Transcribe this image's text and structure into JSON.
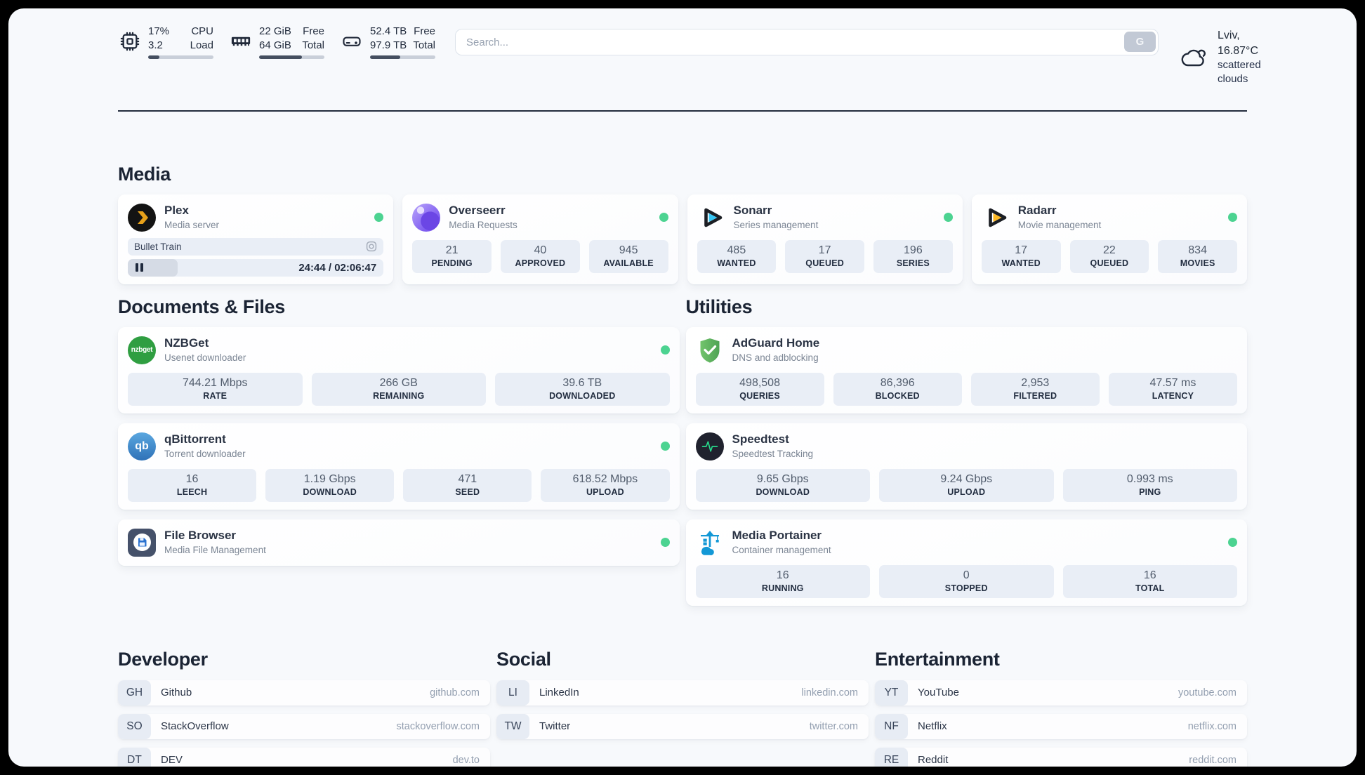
{
  "theme": {
    "status_online": "#4cd391",
    "accent_dark": "#232c3d",
    "stat_block_bg": "#e9eef6"
  },
  "header": {
    "resources": [
      {
        "name": "cpu",
        "icon": "cpu-icon",
        "value_top": "17%",
        "value_bottom": "3.2",
        "label_top": "CPU",
        "label_bottom": "Load",
        "progress_percent": 17
      },
      {
        "name": "memory",
        "icon": "memory-icon",
        "value_top": "22 GiB",
        "value_bottom": "64 GiB",
        "label_top": "Free",
        "label_bottom": "Total",
        "progress_percent": 66
      },
      {
        "name": "disk",
        "icon": "disk-icon",
        "value_top": "52.4 TB",
        "value_bottom": "97.9 TB",
        "label_top": "Free",
        "label_bottom": "Total",
        "progress_percent": 46
      }
    ],
    "search": {
      "placeholder": "Search...",
      "provider_button": "G"
    },
    "weather": {
      "icon": "scattered-clouds-icon",
      "line1": "Lviv, 16.87°C",
      "line2": "scattered clouds"
    }
  },
  "media": {
    "title": "Media",
    "plex": {
      "name": "Plex",
      "subtitle": "Media server",
      "status": "online",
      "now_playing": "Bullet Train",
      "elapsed_total": "24:44 / 02:06:47",
      "progress_percent": 19.5
    },
    "overseerr": {
      "name": "Overseerr",
      "subtitle": "Media Requests",
      "status": "online",
      "stats": [
        {
          "value": "21",
          "label": "PENDING"
        },
        {
          "value": "40",
          "label": "APPROVED"
        },
        {
          "value": "945",
          "label": "AVAILABLE"
        }
      ]
    },
    "sonarr": {
      "name": "Sonarr",
      "subtitle": "Series management",
      "status": "online",
      "stats": [
        {
          "value": "485",
          "label": "WANTED"
        },
        {
          "value": "17",
          "label": "QUEUED"
        },
        {
          "value": "196",
          "label": "SERIES"
        }
      ]
    },
    "radarr": {
      "name": "Radarr",
      "subtitle": "Movie management",
      "status": "online",
      "stats": [
        {
          "value": "17",
          "label": "WANTED"
        },
        {
          "value": "22",
          "label": "QUEUED"
        },
        {
          "value": "834",
          "label": "MOVIES"
        }
      ]
    }
  },
  "documents": {
    "title": "Documents & Files",
    "nzbget": {
      "name": "NZBGet",
      "subtitle": "Usenet downloader",
      "status": "online",
      "icon_text": "nzbget",
      "stats": [
        {
          "value": "744.21 Mbps",
          "label": "RATE"
        },
        {
          "value": "266 GB",
          "label": "REMAINING"
        },
        {
          "value": "39.6 TB",
          "label": "DOWNLOADED"
        }
      ]
    },
    "qbittorrent": {
      "name": "qBittorrent",
      "subtitle": "Torrent downloader",
      "status": "online",
      "icon_text": "qb",
      "stats": [
        {
          "value": "16",
          "label": "LEECH"
        },
        {
          "value": "1.19 Gbps",
          "label": "DOWNLOAD"
        },
        {
          "value": "471",
          "label": "SEED"
        },
        {
          "value": "618.52 Mbps",
          "label": "UPLOAD"
        }
      ]
    },
    "filebrowser": {
      "name": "File Browser",
      "subtitle": "Media File Management",
      "status": "online"
    }
  },
  "utilities": {
    "title": "Utilities",
    "adguard": {
      "name": "AdGuard Home",
      "subtitle": "DNS and adblocking",
      "stats": [
        {
          "value": "498,508",
          "label": "QUERIES"
        },
        {
          "value": "86,396",
          "label": "BLOCKED"
        },
        {
          "value": "2,953",
          "label": "FILTERED"
        },
        {
          "value": "47.57 ms",
          "label": "LATENCY"
        }
      ]
    },
    "speedtest": {
      "name": "Speedtest",
      "subtitle": "Speedtest Tracking",
      "stats": [
        {
          "value": "9.65 Gbps",
          "label": "DOWNLOAD"
        },
        {
          "value": "9.24 Gbps",
          "label": "UPLOAD"
        },
        {
          "value": "0.993 ms",
          "label": "PING"
        }
      ]
    },
    "portainer": {
      "name": "Media Portainer",
      "subtitle": "Container management",
      "status": "online",
      "stats": [
        {
          "value": "16",
          "label": "RUNNING"
        },
        {
          "value": "0",
          "label": "STOPPED"
        },
        {
          "value": "16",
          "label": "TOTAL"
        }
      ]
    }
  },
  "bookmarks": [
    {
      "title": "Developer",
      "items": [
        {
          "abbr": "GH",
          "name": "Github",
          "url": "github.com"
        },
        {
          "abbr": "SO",
          "name": "StackOverflow",
          "url": "stackoverflow.com"
        },
        {
          "abbr": "DT",
          "name": "DEV",
          "url": "dev.to"
        }
      ]
    },
    {
      "title": "Social",
      "items": [
        {
          "abbr": "LI",
          "name": "LinkedIn",
          "url": "linkedin.com"
        },
        {
          "abbr": "TW",
          "name": "Twitter",
          "url": "twitter.com"
        }
      ]
    },
    {
      "title": "Entertainment",
      "items": [
        {
          "abbr": "YT",
          "name": "YouTube",
          "url": "youtube.com"
        },
        {
          "abbr": "NF",
          "name": "Netflix",
          "url": "netflix.com"
        },
        {
          "abbr": "RE",
          "name": "Reddit",
          "url": "reddit.com"
        }
      ]
    }
  ]
}
